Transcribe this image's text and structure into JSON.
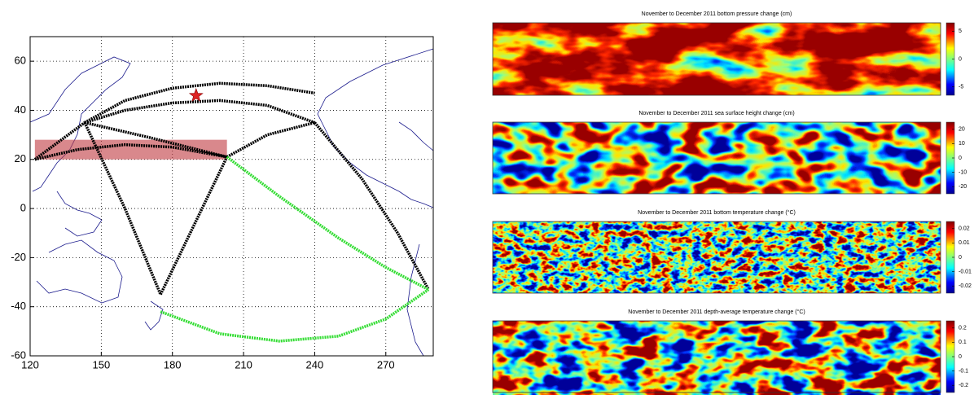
{
  "chart_data": [
    {
      "type": "map",
      "xlim": [
        120,
        290
      ],
      "ylim": [
        -60,
        70
      ],
      "xticks": [
        120,
        150,
        180,
        210,
        240,
        270
      ],
      "yticks": [
        -60,
        -40,
        -20,
        0,
        20,
        40,
        60
      ],
      "grid": true,
      "series": [
        {
          "color": "#000000",
          "x": [
            122,
            140,
            160,
            180,
            203
          ],
          "y": [
            20,
            24,
            26,
            25,
            21
          ]
        },
        {
          "color": "#000000",
          "x": [
            122,
            143
          ],
          "y": [
            20,
            35
          ]
        },
        {
          "color": "#000000",
          "x": [
            143,
            160,
            180,
            200,
            220,
            240
          ],
          "y": [
            35,
            44,
            49,
            51,
            50,
            47
          ]
        },
        {
          "color": "#000000",
          "x": [
            143,
            160,
            180,
            200,
            220,
            240
          ],
          "y": [
            35,
            40,
            43,
            44,
            42,
            35
          ]
        },
        {
          "color": "#000000",
          "x": [
            143,
            170,
            203
          ],
          "y": [
            35,
            29,
            21
          ]
        },
        {
          "color": "#000000",
          "x": [
            143,
            160,
            175
          ],
          "y": [
            35,
            0,
            -35
          ]
        },
        {
          "color": "#000000",
          "x": [
            175,
            190,
            203
          ],
          "y": [
            -35,
            -5,
            21
          ]
        },
        {
          "color": "#000000",
          "x": [
            203,
            220,
            240
          ],
          "y": [
            21,
            30,
            35
          ]
        },
        {
          "color": "#000000",
          "x": [
            240,
            260,
            275,
            288
          ],
          "y": [
            35,
            12,
            -10,
            -33
          ]
        },
        {
          "color": "#33dd33",
          "x": [
            203,
            225,
            250,
            270,
            288
          ],
          "y": [
            21,
            5,
            -12,
            -24,
            -33
          ]
        },
        {
          "color": "#33dd33",
          "x": [
            175,
            200,
            225,
            250,
            270,
            288
          ],
          "y": [
            -42,
            -51,
            -54,
            -52,
            -45,
            -33
          ]
        }
      ],
      "marker": {
        "color": "#dd2222",
        "x": 190,
        "y": 46
      },
      "region": {
        "color": "#c0393f",
        "x": [
          122,
          203
        ],
        "y": [
          20,
          28
        ]
      }
    },
    {
      "type": "heatmap",
      "title": "November to December 2011 bottom pressure change (cm)",
      "colorbar": {
        "lim": [
          -6.5,
          6.5
        ],
        "ticks": [
          5,
          0,
          -5
        ]
      }
    },
    {
      "type": "heatmap",
      "title": "November to December 2011 sea surface height change (cm)",
      "colorbar": {
        "lim": [
          -25,
          25
        ],
        "ticks": [
          20,
          10,
          0,
          -10,
          -20
        ]
      }
    },
    {
      "type": "heatmap",
      "title": "November to December 2011 bottom temperature change (°C)",
      "colorbar": {
        "lim": [
          -0.025,
          0.025
        ],
        "ticks": [
          0.02,
          0.01,
          0,
          -0.01,
          -0.02
        ]
      }
    },
    {
      "type": "heatmap",
      "title": "November to December 2011 depth-average temperature change (°C)",
      "colorbar": {
        "lim": [
          -0.25,
          0.25
        ],
        "ticks": [
          0.2,
          0.1,
          0,
          -0.1,
          -0.2
        ]
      }
    }
  ]
}
